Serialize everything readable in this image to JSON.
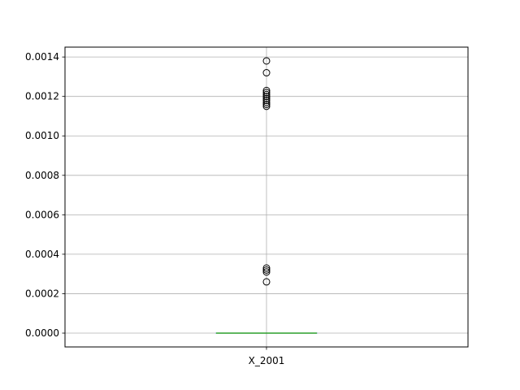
{
  "chart_data": {
    "type": "box",
    "title": "",
    "xlabel": "",
    "ylabel": "",
    "categories": [
      "X_2001"
    ],
    "ylim": [
      -7e-05,
      0.00145
    ],
    "y_ticks": [
      0.0,
      0.0002,
      0.0004,
      0.0006,
      0.0008,
      0.001,
      0.0012,
      0.0014
    ],
    "y_tick_labels": [
      "0.0000",
      "0.0002",
      "0.0004",
      "0.0006",
      "0.0008",
      "0.0010",
      "0.0012",
      "0.0014"
    ],
    "grid": true,
    "series": [
      {
        "category": "X_2001",
        "whisker_low": 0.0,
        "q1": 0.0,
        "median": 0.0,
        "q3": 0.0,
        "whisker_high": 0.0,
        "outliers": [
          0.00138,
          0.00132,
          0.00123,
          0.00122,
          0.00121,
          0.0012,
          0.00119,
          0.00118,
          0.00117,
          0.00116,
          0.00115,
          0.00033,
          0.00032,
          0.00031,
          0.00026
        ]
      }
    ],
    "colors": {
      "median": "#2ca02c",
      "box": "#1f77b4",
      "grid": "#b0b0b0",
      "outlier_edge": "#000000"
    }
  }
}
